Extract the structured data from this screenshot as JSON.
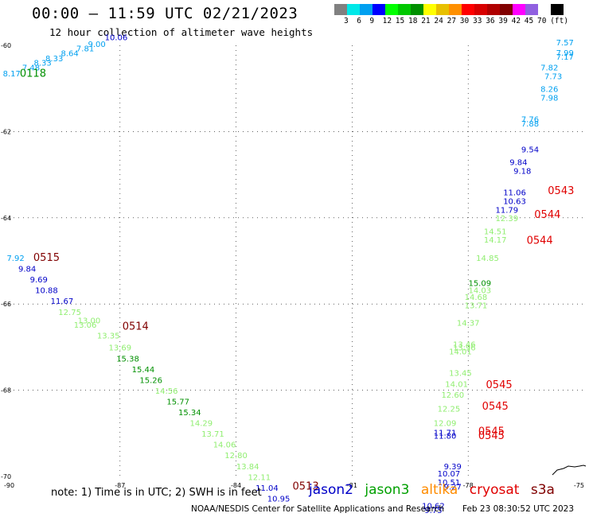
{
  "header": {
    "title": "00:00 – 11:59 UTC 02/21/2023",
    "subtitle": "12 hour collection of altimeter wave heights"
  },
  "legend": {
    "colors": [
      "#808080",
      "#00e8e8",
      "#00a0f0",
      "#0000ff",
      "#00ff00",
      "#00c800",
      "#009000",
      "#ffff00",
      "#e8c000",
      "#ff9000",
      "#ff0000",
      "#d80000",
      "#b00000",
      "#800000",
      "#ff00ff",
      "#9060e0",
      "#ffffff",
      "#000000"
    ],
    "labels": [
      "3",
      "6",
      "9",
      "12",
      "15",
      "18",
      "21",
      "24",
      "27",
      "30",
      "33",
      "36",
      "39",
      "42",
      "45",
      "70"
    ],
    "unit": "(ft)"
  },
  "axes": {
    "lon_ticks": [
      "-90",
      "-87",
      "-84",
      "-81",
      "-78",
      "-75"
    ],
    "lat_ticks": [
      "-60",
      "-62",
      "-64",
      "-66",
      "-68",
      "-70"
    ]
  },
  "satellite_colors": {
    "jason2": "#0000c8",
    "jason3": "#00a000",
    "altika": "#ff8c00",
    "cryosat": "#e00000",
    "s3a": "#800000"
  },
  "observations": {
    "track_nw": [
      {
        "t": "8.17",
        "lon": -89.8,
        "lat": -60.72,
        "c": "#00a0f0"
      },
      {
        "t": "7.48",
        "lon": -89.3,
        "lat": -60.58,
        "c": "#00a0f0"
      },
      {
        "t": "8.33",
        "lon": -89.0,
        "lat": -60.47,
        "c": "#00a0f0"
      },
      {
        "t": "8.33",
        "lon": -88.7,
        "lat": -60.37,
        "c": "#00a0f0"
      },
      {
        "t": "8.64",
        "lon": -88.3,
        "lat": -60.25,
        "c": "#00a0f0"
      },
      {
        "t": "7.81",
        "lon": -87.9,
        "lat": -60.14,
        "c": "#00a0f0"
      },
      {
        "t": "9.00",
        "lon": -87.6,
        "lat": -60.04,
        "c": "#00a0f0"
      },
      {
        "t": "10.06",
        "lon": -87.1,
        "lat": -59.88,
        "c": "#0000c8"
      }
    ],
    "track_w": [
      {
        "t": "7.92",
        "lon": -89.7,
        "lat": -65.0,
        "c": "#00a0f0"
      },
      {
        "t": "9.84",
        "lon": -89.4,
        "lat": -65.25,
        "c": "#0000c8"
      },
      {
        "t": "9.69",
        "lon": -89.1,
        "lat": -65.5,
        "c": "#0000c8"
      },
      {
        "t": "10.88",
        "lon": -88.9,
        "lat": -65.75,
        "c": "#0000c8"
      },
      {
        "t": "11.67",
        "lon": -88.5,
        "lat": -66.0,
        "c": "#0000c8"
      },
      {
        "t": "12.75",
        "lon": -88.3,
        "lat": -66.25,
        "c": "#90ee70"
      },
      {
        "t": "13.00",
        "lon": -87.8,
        "lat": -66.45,
        "c": "#90ee70"
      },
      {
        "t": "13.06",
        "lon": -87.9,
        "lat": -66.55,
        "c": "#90ee70"
      },
      {
        "t": "13.35",
        "lon": -87.3,
        "lat": -66.8,
        "c": "#90ee70"
      },
      {
        "t": "13.69",
        "lon": -87.0,
        "lat": -67.08,
        "c": "#90ee70"
      },
      {
        "t": "15.38",
        "lon": -86.8,
        "lat": -67.33,
        "c": "#009000"
      },
      {
        "t": "15.44",
        "lon": -86.4,
        "lat": -67.58,
        "c": "#009000"
      },
      {
        "t": "15.26",
        "lon": -86.2,
        "lat": -67.83,
        "c": "#009000"
      },
      {
        "t": "14.56",
        "lon": -85.8,
        "lat": -68.08,
        "c": "#90ee70"
      },
      {
        "t": "15.77",
        "lon": -85.5,
        "lat": -68.33,
        "c": "#009000"
      },
      {
        "t": "15.34",
        "lon": -85.2,
        "lat": -68.58,
        "c": "#009000"
      },
      {
        "t": "14.29",
        "lon": -84.9,
        "lat": -68.83,
        "c": "#90ee70"
      },
      {
        "t": "13.71",
        "lon": -84.6,
        "lat": -69.08,
        "c": "#90ee70"
      },
      {
        "t": "14.06",
        "lon": -84.3,
        "lat": -69.33,
        "c": "#90ee70"
      },
      {
        "t": "12.80",
        "lon": -84.0,
        "lat": -69.58,
        "c": "#90ee70"
      },
      {
        "t": "13.84",
        "lon": -83.7,
        "lat": -69.83,
        "c": "#90ee70"
      },
      {
        "t": "12.11",
        "lon": -83.4,
        "lat": -70.08,
        "c": "#90ee70"
      },
      {
        "t": "11.04",
        "lon": -83.2,
        "lat": -70.33,
        "c": "#0000c8"
      },
      {
        "t": "10.95",
        "lon": -82.9,
        "lat": -70.58,
        "c": "#0000c8"
      }
    ],
    "track_e": [
      {
        "t": "7.57",
        "lon": -75.5,
        "lat": -60.0,
        "c": "#00a0f0"
      },
      {
        "t": "7.99",
        "lon": -75.5,
        "lat": -60.24,
        "c": "#00a0f0"
      },
      {
        "t": "7.17",
        "lon": -75.5,
        "lat": -60.33,
        "c": "#00a0f0"
      },
      {
        "t": "7.82",
        "lon": -75.9,
        "lat": -60.58,
        "c": "#00a0f0"
      },
      {
        "t": "7.73",
        "lon": -75.8,
        "lat": -60.78,
        "c": "#00a0f0"
      },
      {
        "t": "8.26",
        "lon": -75.9,
        "lat": -61.08,
        "c": "#00a0f0"
      },
      {
        "t": "7.98",
        "lon": -75.9,
        "lat": -61.28,
        "c": "#00a0f0"
      },
      {
        "t": "7.76",
        "lon": -76.4,
        "lat": -61.78,
        "c": "#00a0f0"
      },
      {
        "t": "7.88",
        "lon": -76.4,
        "lat": -61.88,
        "c": "#00a0f0"
      },
      {
        "t": "9.54",
        "lon": -76.4,
        "lat": -62.48,
        "c": "#0000c8"
      },
      {
        "t": "9.84",
        "lon": -76.7,
        "lat": -62.78,
        "c": "#0000c8"
      },
      {
        "t": "9.18",
        "lon": -76.6,
        "lat": -62.98,
        "c": "#0000c8"
      },
      {
        "t": "11.06",
        "lon": -76.8,
        "lat": -63.48,
        "c": "#0000c8"
      },
      {
        "t": "10.63",
        "lon": -76.8,
        "lat": -63.68,
        "c": "#0000c8"
      },
      {
        "t": "11.79",
        "lon": -77.0,
        "lat": -63.88,
        "c": "#0000c8"
      },
      {
        "t": "12.39",
        "lon": -77.0,
        "lat": -64.08,
        "c": "#90ee70"
      },
      {
        "t": "14.51",
        "lon": -77.3,
        "lat": -64.38,
        "c": "#90ee70"
      },
      {
        "t": "14.17",
        "lon": -77.3,
        "lat": -64.58,
        "c": "#90ee70"
      },
      {
        "t": "14.85",
        "lon": -77.5,
        "lat": -65.0,
        "c": "#90ee70"
      },
      {
        "t": "15.09",
        "lon": -77.7,
        "lat": -65.58,
        "c": "#009000"
      },
      {
        "t": "14.03",
        "lon": -77.7,
        "lat": -65.75,
        "c": "#90ee70"
      },
      {
        "t": "14.68",
        "lon": -77.8,
        "lat": -65.9,
        "c": "#90ee70"
      },
      {
        "t": "13.71",
        "lon": -77.8,
        "lat": -66.1,
        "c": "#90ee70"
      },
      {
        "t": "14.37",
        "lon": -78.0,
        "lat": -66.5,
        "c": "#90ee70"
      },
      {
        "t": "13.46",
        "lon": -78.1,
        "lat": -67.0,
        "c": "#90ee70"
      },
      {
        "t": "13.96",
        "lon": -78.1,
        "lat": -67.08,
        "c": "#90ee70"
      },
      {
        "t": "14.01",
        "lon": -78.2,
        "lat": -67.17,
        "c": "#90ee70"
      },
      {
        "t": "13.45",
        "lon": -78.2,
        "lat": -67.67,
        "c": "#90ee70"
      },
      {
        "t": "14.01",
        "lon": -78.3,
        "lat": -67.92,
        "c": "#90ee70"
      },
      {
        "t": "12.60",
        "lon": -78.4,
        "lat": -68.17,
        "c": "#90ee70"
      },
      {
        "t": "12.25",
        "lon": -78.5,
        "lat": -68.5,
        "c": "#90ee70"
      },
      {
        "t": "12.09",
        "lon": -78.6,
        "lat": -68.83,
        "c": "#90ee70"
      },
      {
        "t": "11.71",
        "lon": -78.6,
        "lat": -69.05,
        "c": "#0000c8"
      },
      {
        "t": "11.80",
        "lon": -78.6,
        "lat": -69.12,
        "c": "#0000c8"
      },
      {
        "t": "9.39",
        "lon": -78.4,
        "lat": -69.83,
        "c": "#0000c8"
      },
      {
        "t": "10.07",
        "lon": -78.5,
        "lat": -70.0,
        "c": "#0000c8"
      },
      {
        "t": "10.51",
        "lon": -78.5,
        "lat": -70.2,
        "c": "#0000c8"
      },
      {
        "t": "9.27",
        "lon": -78.4,
        "lat": -70.3,
        "c": "#0000c8"
      },
      {
        "t": "10.62",
        "lon": -78.9,
        "lat": -70.75,
        "c": "#0000c8"
      },
      {
        "t": "9.75",
        "lon": -78.9,
        "lat": -70.85,
        "c": "#0000c8"
      }
    ]
  },
  "pass_labels": [
    {
      "t": "0118",
      "lon": -89.25,
      "lat": -60.73,
      "c": "#009000"
    },
    {
      "t": "0515",
      "lon": -88.9,
      "lat": -65.0,
      "c": "#800000"
    },
    {
      "t": "0514",
      "lon": -86.6,
      "lat": -66.6,
      "c": "#800000"
    },
    {
      "t": "0513",
      "lon": -82.2,
      "lat": -70.3,
      "c": "#800000"
    },
    {
      "t": "0543",
      "lon": -75.6,
      "lat": -63.45,
      "c": "#e00000"
    },
    {
      "t": "0544",
      "lon": -75.95,
      "lat": -64.0,
      "c": "#e00000"
    },
    {
      "t": "0544",
      "lon": -76.15,
      "lat": -64.6,
      "c": "#e00000"
    },
    {
      "t": "0545",
      "lon": -77.2,
      "lat": -67.95,
      "c": "#e00000"
    },
    {
      "t": "0545",
      "lon": -77.3,
      "lat": -68.45,
      "c": "#e00000"
    },
    {
      "t": "0545",
      "lon": -77.4,
      "lat": -69.03,
      "c": "#e00000"
    },
    {
      "t": "0545",
      "lon": -77.4,
      "lat": -69.13,
      "c": "#e00000"
    }
  ],
  "footer": {
    "note": "note: 1) Time is in UTC; 2) SWH is in feet",
    "sat_names": [
      "jason2",
      "jason3",
      "altika",
      "cryosat",
      "s3a"
    ],
    "credit": "NOAA/NESDIS Center for Satellite Applications and Research",
    "timestamp": "Feb 23 08:30:52 UTC 2023"
  }
}
